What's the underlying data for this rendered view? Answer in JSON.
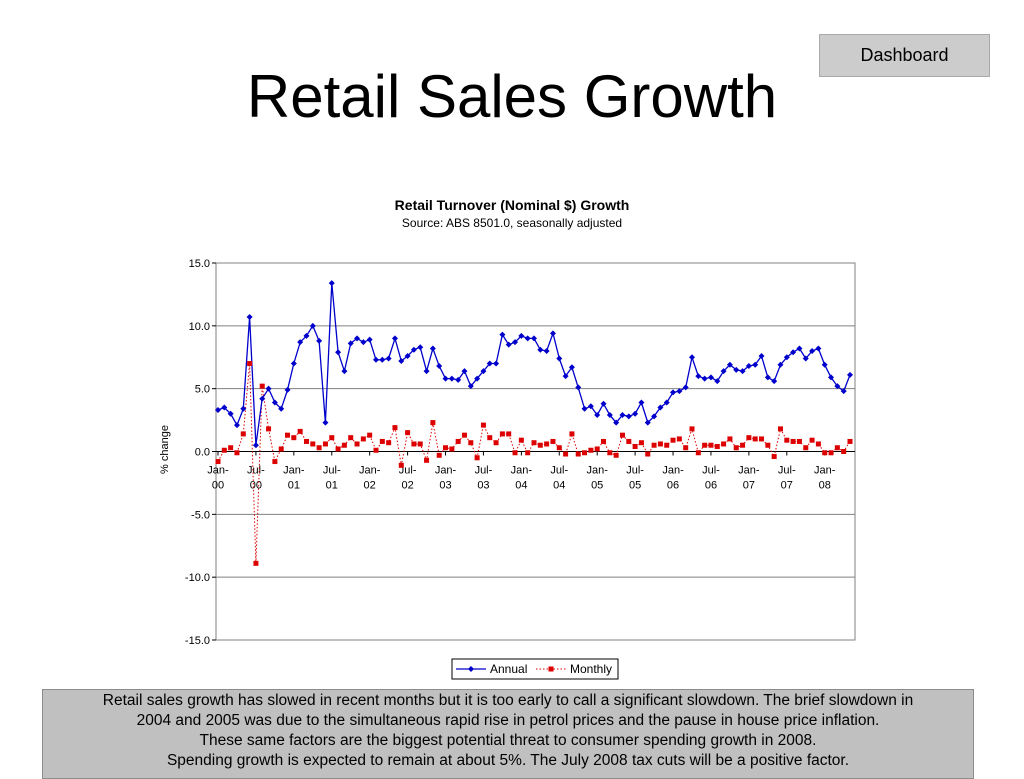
{
  "nav": {
    "dashboard_label": "Dashboard"
  },
  "page": {
    "title": "Retail Sales Growth"
  },
  "commentary": [
    "Retail sales growth has slowed in recent months but it is too early to call a significant slowdown.  The brief slowdown in",
    "2004 and 2005 was due to the simultaneous rapid rise in petrol prices and the pause in house price inflation.",
    "These same factors are the biggest potential threat to consumer spending growth in 2008.",
    "Spending growth is expected to remain at about 5%.  The July 2008 tax cuts will be a positive factor."
  ],
  "colors": {
    "annual": "#0000cc",
    "monthly": "#dd0000",
    "grid": "#808080"
  },
  "chart_data": {
    "type": "line",
    "title": "Retail Turnover (Nominal $) Growth",
    "subtitle": "Source: ABS 8501.0, seasonally adjusted",
    "ylabel": "% change",
    "xlabel": "",
    "ylim": [
      -15,
      15
    ],
    "yticks": [
      "15.0",
      "10.0",
      "5.0",
      "0.0",
      "-5.0",
      "-10.0",
      "-15.0"
    ],
    "xtick_labels": [
      [
        "Jan-",
        "00"
      ],
      [
        "Jul-",
        "00"
      ],
      [
        "Jan-",
        "01"
      ],
      [
        "Jul-",
        "01"
      ],
      [
        "Jan-",
        "02"
      ],
      [
        "Jul-",
        "02"
      ],
      [
        "Jan-",
        "03"
      ],
      [
        "Jul-",
        "03"
      ],
      [
        "Jan-",
        "04"
      ],
      [
        "Jul-",
        "04"
      ],
      [
        "Jan-",
        "05"
      ],
      [
        "Jul-",
        "05"
      ],
      [
        "Jan-",
        "06"
      ],
      [
        "Jul-",
        "06"
      ],
      [
        "Jan-",
        "07"
      ],
      [
        "Jul-",
        "07"
      ],
      [
        "Jan-",
        "08"
      ]
    ],
    "grid": true,
    "legend_position": "bottom-center",
    "series": [
      {
        "name": "Annual",
        "values": [
          3.3,
          3.5,
          3.0,
          2.1,
          3.4,
          10.7,
          0.5,
          4.2,
          5.0,
          3.9,
          3.4,
          4.9,
          7.0,
          8.7,
          9.2,
          10.0,
          8.8,
          2.3,
          13.4,
          7.9,
          6.4,
          8.6,
          9.0,
          8.7,
          8.9,
          7.3,
          7.3,
          7.4,
          9.0,
          7.2,
          7.6,
          8.1,
          8.3,
          6.4,
          8.2,
          6.8,
          5.8,
          5.8,
          5.7,
          6.4,
          5.2,
          5.8,
          6.4,
          7.0,
          7.0,
          9.3,
          8.5,
          8.7,
          9.2,
          9.0,
          9.0,
          8.1,
          8.0,
          9.4,
          7.4,
          6.0,
          6.7,
          5.1,
          3.4,
          3.6,
          2.9,
          3.8,
          2.9,
          2.3,
          2.9,
          2.8,
          3.0,
          3.9,
          2.3,
          2.8,
          3.5,
          3.9,
          4.7,
          4.8,
          5.1,
          7.5,
          6.0,
          5.8,
          5.9,
          5.6,
          6.4,
          6.9,
          6.5,
          6.4,
          6.8,
          6.9,
          7.6,
          5.9,
          5.6,
          6.9,
          7.5,
          7.9,
          8.2,
          7.4,
          8.0,
          8.2,
          6.9,
          5.9,
          5.2,
          4.8,
          6.1
        ],
        "line_style": "solid",
        "marker": "diamond"
      },
      {
        "name": "Monthly",
        "values": [
          -0.8,
          0.1,
          0.3,
          -0.1,
          1.4,
          7.0,
          -8.9,
          5.2,
          1.8,
          -0.8,
          0.2,
          1.3,
          1.1,
          1.6,
          0.8,
          0.6,
          0.3,
          0.6,
          1.1,
          0.2,
          0.5,
          1.1,
          0.6,
          1.0,
          1.3,
          0.1,
          0.8,
          0.7,
          1.9,
          -1.1,
          1.5,
          0.6,
          0.6,
          -0.7,
          2.3,
          -0.3,
          0.3,
          0.2,
          0.8,
          1.3,
          0.7,
          -0.5,
          2.1,
          1.1,
          0.7,
          1.4,
          1.4,
          -0.1,
          0.9,
          -0.1,
          0.7,
          0.5,
          0.6,
          0.8,
          0.3,
          -0.2,
          1.4,
          -0.2,
          -0.1,
          0.1,
          0.2,
          0.8,
          -0.1,
          -0.3,
          1.3,
          0.8,
          0.4,
          0.7,
          -0.2,
          0.5,
          0.6,
          0.5,
          0.9,
          1.0,
          0.3,
          1.8,
          -0.1,
          0.5,
          0.5,
          0.4,
          0.6,
          1.0,
          0.3,
          0.5,
          1.1,
          1.0,
          1.0,
          0.5,
          -0.4,
          1.8,
          0.9,
          0.8,
          0.8,
          0.3,
          0.9,
          0.6,
          -0.1,
          -0.1,
          0.3,
          0.0,
          0.8
        ],
        "line_style": "dotted",
        "marker": "square"
      }
    ]
  }
}
